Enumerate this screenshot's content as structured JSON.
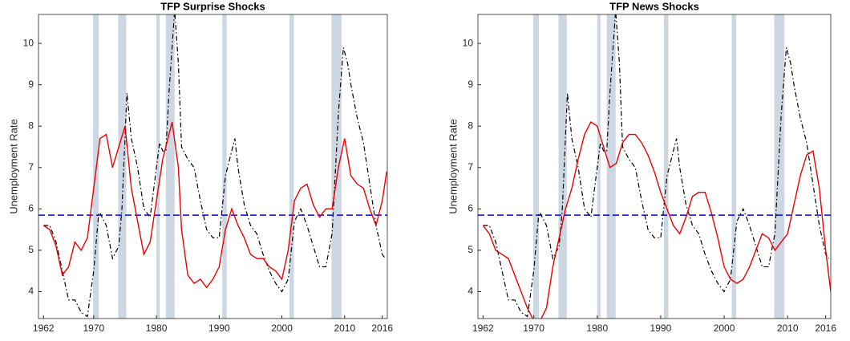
{
  "chart_data": [
    {
      "type": "line",
      "title": "TFP Surprise Shocks",
      "ylabel": "Unemployment Rate",
      "xlim": [
        1961.2,
        2016.8
      ],
      "ylim": [
        3.35,
        10.7
      ],
      "xticks": [
        1962,
        1970,
        1980,
        1990,
        2000,
        2010,
        2016
      ],
      "yticks": [
        4,
        5,
        6,
        7,
        8,
        9,
        10
      ],
      "recessions": [
        [
          1969.9,
          1970.8
        ],
        [
          1973.9,
          1975.2
        ],
        [
          1980.0,
          1980.5
        ],
        [
          1981.5,
          1982.9
        ],
        [
          1990.5,
          1991.2
        ],
        [
          2001.2,
          2001.9
        ],
        [
          2007.9,
          2009.5
        ]
      ],
      "recession_color": "#cdd7e4",
      "reference_line": 5.85,
      "reference_color": "#0000ff",
      "series": [
        {
          "color": "#000000",
          "style": "dashdot",
          "x": [
            1962,
            1963,
            1964,
            1965,
            1966,
            1967,
            1968,
            1969,
            1970,
            1970.8,
            1971,
            1972,
            1973,
            1974,
            1974.5,
            1975.3,
            1976,
            1977,
            1978,
            1979,
            1980.5,
            1981,
            1981.5,
            1982,
            1982.9,
            1983.5,
            1984,
            1985,
            1986,
            1987,
            1988,
            1989,
            1990,
            1991,
            1992.5,
            1993,
            1994,
            1995,
            1996,
            1997,
            1998,
            1999,
            2000,
            2001,
            2002,
            2003,
            2004,
            2005,
            2006,
            2007,
            2008,
            2009,
            2009.8,
            2010.5,
            2011,
            2012,
            2013,
            2014,
            2015,
            2016,
            2016.5
          ],
          "values": [
            5.6,
            5.6,
            5.2,
            4.5,
            3.8,
            3.8,
            3.5,
            3.4,
            4.5,
            5.9,
            5.9,
            5.6,
            4.8,
            5.1,
            6.0,
            8.8,
            7.7,
            7.0,
            6.0,
            5.8,
            7.6,
            7.4,
            7.4,
            8.8,
            10.8,
            9.5,
            7.5,
            7.2,
            7.0,
            6.2,
            5.5,
            5.3,
            5.3,
            6.8,
            7.7,
            7.0,
            6.1,
            5.6,
            5.4,
            4.9,
            4.5,
            4.2,
            4.0,
            4.3,
            5.7,
            6.0,
            5.6,
            5.1,
            4.6,
            4.6,
            5.4,
            8.3,
            9.9,
            9.5,
            9.0,
            8.2,
            7.6,
            6.6,
            5.6,
            4.9,
            4.8
          ]
        },
        {
          "color": "#ee0000",
          "style": "solid",
          "x": [
            1962,
            1963,
            1964,
            1965,
            1966,
            1967,
            1968,
            1969,
            1970,
            1971,
            1972,
            1973,
            1974,
            1975,
            1976,
            1977,
            1978,
            1979,
            1980,
            1981,
            1982.5,
            1983.5,
            1984,
            1985,
            1986,
            1987,
            1988,
            1989,
            1990,
            1991,
            1992,
            1993,
            1994,
            1995,
            1996,
            1997,
            1998,
            1999,
            2000,
            2001,
            2002,
            2003,
            2004,
            2005,
            2006,
            2007,
            2008,
            2009,
            2010,
            2011,
            2012,
            2013,
            2014,
            2015,
            2016,
            2016.7
          ],
          "values": [
            5.6,
            5.5,
            5.1,
            4.4,
            4.6,
            5.2,
            5.0,
            5.3,
            6.5,
            7.7,
            7.8,
            7.0,
            7.5,
            8.0,
            6.5,
            5.7,
            4.9,
            5.2,
            6.2,
            7.2,
            8.1,
            7.0,
            5.5,
            4.4,
            4.2,
            4.3,
            4.1,
            4.3,
            4.6,
            5.5,
            6.0,
            5.6,
            5.3,
            4.9,
            4.8,
            4.8,
            4.6,
            4.5,
            4.3,
            5.0,
            6.2,
            6.5,
            6.6,
            6.1,
            5.8,
            6.0,
            6.0,
            7.0,
            7.7,
            6.8,
            6.6,
            6.5,
            6.0,
            5.6,
            6.2,
            6.9
          ]
        }
      ]
    },
    {
      "type": "line",
      "title": "TFP News Shocks",
      "ylabel": "Unemployment Rate",
      "xlim": [
        1961.2,
        2016.8
      ],
      "ylim": [
        3.35,
        10.7
      ],
      "xticks": [
        1962,
        1970,
        1980,
        1990,
        2000,
        2010,
        2016
      ],
      "yticks": [
        4,
        5,
        6,
        7,
        8,
        9,
        10
      ],
      "recessions": [
        [
          1969.9,
          1970.8
        ],
        [
          1973.9,
          1975.2
        ],
        [
          1980.0,
          1980.5
        ],
        [
          1981.5,
          1982.9
        ],
        [
          1990.5,
          1991.2
        ],
        [
          2001.2,
          2001.9
        ],
        [
          2007.9,
          2009.5
        ]
      ],
      "recession_color": "#cdd7e4",
      "reference_line": 5.85,
      "reference_color": "#0000ff",
      "series": [
        {
          "color": "#000000",
          "style": "dashdot",
          "x": [
            1962,
            1963,
            1964,
            1965,
            1966,
            1967,
            1968,
            1969,
            1970,
            1970.8,
            1971,
            1972,
            1973,
            1974,
            1974.5,
            1975.3,
            1976,
            1977,
            1978,
            1979,
            1980.5,
            1981,
            1981.5,
            1982,
            1982.9,
            1983.5,
            1984,
            1985,
            1986,
            1987,
            1988,
            1989,
            1990,
            1991,
            1992.5,
            1993,
            1994,
            1995,
            1996,
            1997,
            1998,
            1999,
            2000,
            2001,
            2002,
            2003,
            2004,
            2005,
            2006,
            2007,
            2008,
            2009,
            2009.8,
            2010.5,
            2011,
            2012,
            2013,
            2014,
            2015,
            2016,
            2016.5
          ],
          "values": [
            5.6,
            5.6,
            5.2,
            4.5,
            3.8,
            3.8,
            3.5,
            3.4,
            4.5,
            5.9,
            5.9,
            5.6,
            4.8,
            5.1,
            6.0,
            8.8,
            7.7,
            7.0,
            6.0,
            5.8,
            7.6,
            7.4,
            7.4,
            8.8,
            10.8,
            9.5,
            7.5,
            7.2,
            7.0,
            6.2,
            5.5,
            5.3,
            5.3,
            6.8,
            7.7,
            7.0,
            6.1,
            5.6,
            5.4,
            4.9,
            4.5,
            4.2,
            4.0,
            4.3,
            5.7,
            6.0,
            5.6,
            5.1,
            4.6,
            4.6,
            5.4,
            8.3,
            9.9,
            9.5,
            9.0,
            8.2,
            7.6,
            6.6,
            5.6,
            4.9,
            4.8
          ]
        },
        {
          "color": "#ee0000",
          "style": "solid",
          "x": [
            1962,
            1963,
            1964,
            1965,
            1966,
            1967,
            1968,
            1969,
            1970,
            1971,
            1972,
            1973,
            1974,
            1975,
            1976,
            1977,
            1978,
            1979,
            1980,
            1981,
            1982,
            1983,
            1984,
            1985,
            1986,
            1987,
            1988,
            1989,
            1990,
            1991,
            1992,
            1993,
            1994,
            1995,
            1996,
            1997,
            1998,
            1999,
            2000,
            2001,
            2002,
            2003,
            2004,
            2005,
            2006,
            2007,
            2008,
            2009,
            2010,
            2011,
            2012,
            2013,
            2014,
            2015,
            2016,
            2016.8
          ],
          "values": [
            5.6,
            5.4,
            5.0,
            4.9,
            4.8,
            4.4,
            4.0,
            3.6,
            3.3,
            3.3,
            3.6,
            4.6,
            5.3,
            6.0,
            6.5,
            7.2,
            7.8,
            8.1,
            8.0,
            7.5,
            7.0,
            7.1,
            7.6,
            7.8,
            7.8,
            7.6,
            7.3,
            6.9,
            6.4,
            6.0,
            5.6,
            5.4,
            5.8,
            6.3,
            6.4,
            6.4,
            5.9,
            5.3,
            4.6,
            4.3,
            4.2,
            4.3,
            4.6,
            5.0,
            5.4,
            5.3,
            5.0,
            5.2,
            5.4,
            6.1,
            6.8,
            7.3,
            7.4,
            6.5,
            5.0,
            4.0
          ]
        }
      ]
    }
  ]
}
